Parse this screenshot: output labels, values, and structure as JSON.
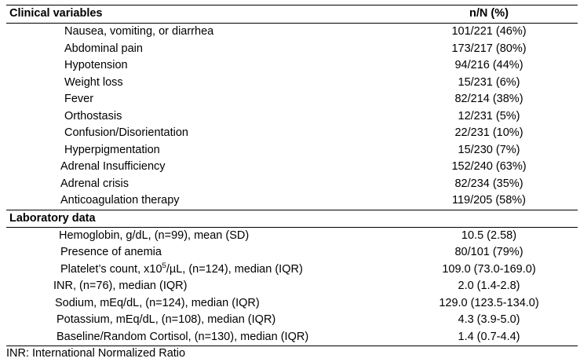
{
  "headers": {
    "variable": "Clinical variables",
    "value": "n/N (%)"
  },
  "clinical": [
    {
      "label": "Nausea, vomiting, or diarrhea",
      "value": "101/221 (46%)"
    },
    {
      "label": "Abdominal pain",
      "value": "173/217 (80%)"
    },
    {
      "label": "Hypotension",
      "value": "94/216 (44%)"
    },
    {
      "label": "Weight loss",
      "value": "15/231 (6%)"
    },
    {
      "label": "Fever",
      "value": "82/214 (38%)"
    },
    {
      "label": "Orthostasis",
      "value": "12/231 (5%)"
    },
    {
      "label": "Confusion/Disorientation",
      "value": "22/231 (10%)"
    },
    {
      "label": "Hyperpigmentation",
      "value": "15/230 (7%)"
    },
    {
      "label": "Adrenal Insufficiency",
      "value": "152/240 (63%)"
    },
    {
      "label": "Adrenal crisis",
      "value": "82/234 (35%)"
    },
    {
      "label": "Anticoagulation therapy",
      "value": "119/205 (58%)"
    }
  ],
  "lab_header": "Laboratory data",
  "laboratory": [
    {
      "label": "Hemoglobin, g/dL, (n=99), mean (SD)",
      "value": "10.5 (2.58)"
    },
    {
      "label": "Presence of anemia",
      "value": "80/101 (79%)"
    },
    {
      "label_pre": "Platelet’s count, x10",
      "label_sup": "5",
      "label_post": "/µL, (n=124), median (IQR)",
      "value": "109.0 (73.0-169.0)"
    },
    {
      "label": "INR, (n=76), median (IQR)",
      "value": "2.0 (1.4-2.8)"
    },
    {
      "label": "Sodium, mEq/dL, (n=124), median (IQR)",
      "value": "129.0 (123.5-134.0)"
    },
    {
      "label": "Potassium, mEq/dL, (n=108), median (IQR)",
      "value": "4.3 (3.9-5.0)"
    },
    {
      "label": "Baseline/Random Cortisol, (n=130), median (IQR)",
      "value": "1.4 (0.7-4.4)"
    }
  ],
  "footnote": "INR: International Normalized Ratio"
}
